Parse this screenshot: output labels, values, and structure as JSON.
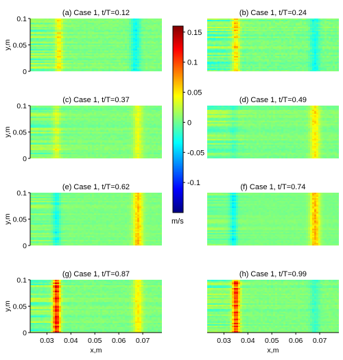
{
  "chart_data": {
    "type": "heatmap",
    "xlabel": "x,m",
    "ylabel": "y,m",
    "xlim": [
      0.023,
      0.078
    ],
    "ylim": [
      0,
      0.1
    ],
    "x_ticks": [
      "0.03",
      "0.04",
      "0.05",
      "0.06",
      "0.07"
    ],
    "x_tick_values": [
      0.03,
      0.04,
      0.05,
      0.06,
      0.07
    ],
    "y_ticks": [
      "0",
      "0.05",
      "0.1"
    ],
    "y_tick_values": [
      0,
      0.05,
      0.1
    ],
    "colorbar": {
      "min": -0.15,
      "max": 0.16,
      "ticks": [
        "0.15",
        "0.1",
        "0.05",
        "0",
        "-0.05",
        "-0.1"
      ],
      "tick_values": [
        0.15,
        0.1,
        0.05,
        0,
        -0.05,
        -0.1
      ],
      "unit": "m/s",
      "colormap": "jet"
    },
    "panels": [
      {
        "title": "(a) Case 1, t/T=0.12",
        "left_band_x": 0.035,
        "left_band_v": 0.04,
        "right_band_x": 0.067,
        "right_band_v": -0.035,
        "noise": 0.02
      },
      {
        "title": "(b) Case 1, t/T=0.24",
        "left_band_x": 0.035,
        "left_band_v": 0.05,
        "right_band_x": 0.068,
        "right_band_v": -0.03,
        "noise": 0.025
      },
      {
        "title": "(c) Case 1, t/T=0.37",
        "left_band_x": 0.034,
        "left_band_v": 0.025,
        "right_band_x": 0.068,
        "right_band_v": 0.03,
        "noise": 0.018
      },
      {
        "title": "(d) Case 1, t/T=0.49",
        "left_band_x": 0.034,
        "left_band_v": -0.01,
        "right_band_x": 0.068,
        "right_band_v": 0.045,
        "noise": 0.018
      },
      {
        "title": "(e) Case 1, t/T=0.62",
        "left_band_x": 0.034,
        "left_band_v": -0.03,
        "right_band_x": 0.068,
        "right_band_v": 0.055,
        "noise": 0.015
      },
      {
        "title": "(f) Case 1, t/T=0.74",
        "left_band_x": 0.034,
        "left_band_v": -0.035,
        "right_band_x": 0.068,
        "right_band_v": 0.06,
        "noise": 0.012
      },
      {
        "title": "(g) Case 1, t/T=0.87",
        "left_band_x": 0.034,
        "left_band_v": 0.11,
        "right_band_x": 0.068,
        "right_band_v": 0.04,
        "noise": 0.02
      },
      {
        "title": "(h) Case 1, t/T=0.99",
        "left_band_x": 0.035,
        "left_band_v": 0.1,
        "right_band_x": 0.068,
        "right_band_v": -0.02,
        "noise": 0.02
      }
    ]
  }
}
